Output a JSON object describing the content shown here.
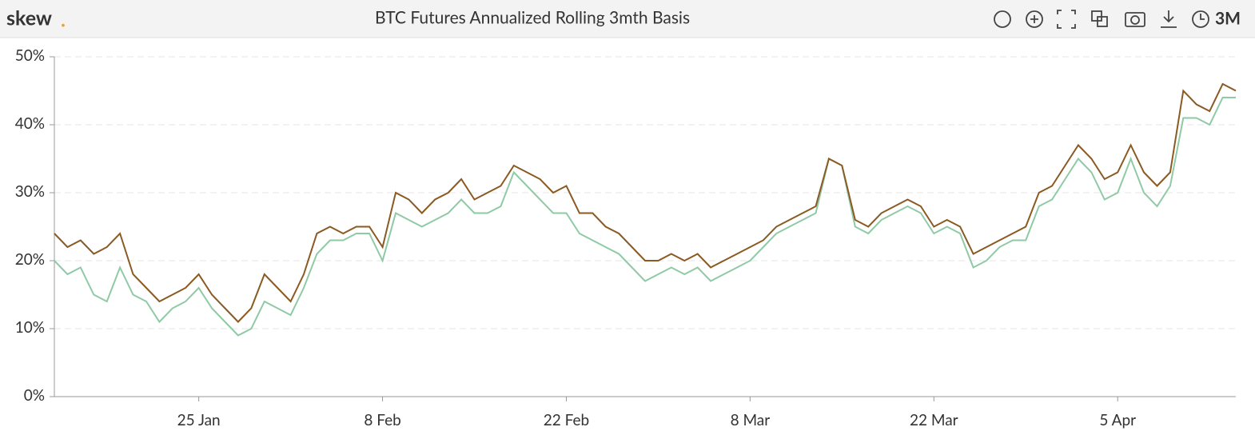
{
  "header": {
    "logo": "skew",
    "logo_mark": ".",
    "range": "3M"
  },
  "chart_data": {
    "type": "line",
    "title": "BTC Futures Annualized Rolling 3mth Basis",
    "categories": [
      null,
      null,
      null,
      null,
      null,
      null,
      null,
      null,
      null,
      null,
      null,
      "25 Jan",
      null,
      null,
      null,
      null,
      null,
      null,
      null,
      null,
      null,
      null,
      null,
      null,
      null,
      "8 Feb",
      null,
      null,
      null,
      null,
      null,
      null,
      null,
      null,
      null,
      null,
      null,
      null,
      null,
      "22 Feb",
      null,
      null,
      null,
      null,
      null,
      null,
      null,
      null,
      null,
      null,
      null,
      null,
      null,
      "8 Mar",
      null,
      null,
      null,
      null,
      null,
      null,
      null,
      null,
      null,
      null,
      null,
      null,
      null,
      "22 Mar",
      null,
      null,
      null,
      null,
      null,
      null,
      null,
      null,
      null,
      null,
      null,
      null,
      null,
      "5 Apr",
      null,
      null,
      null,
      null,
      null,
      null,
      null,
      null,
      null
    ],
    "series": [
      {
        "color": "#8fcaa6",
        "values": [
          20,
          18,
          19,
          15,
          14,
          19,
          15,
          14,
          11,
          13,
          14,
          16,
          13,
          11,
          9,
          10,
          14,
          13,
          12,
          16,
          21,
          23,
          23,
          24,
          24,
          20,
          27,
          26,
          25,
          26,
          27,
          29,
          27,
          27,
          28,
          33,
          31,
          29,
          27,
          27,
          24,
          23,
          22,
          21,
          19,
          17,
          18,
          19,
          18,
          19,
          17,
          18,
          19,
          20,
          22,
          24,
          25,
          26,
          27,
          35,
          34,
          25,
          24,
          26,
          27,
          28,
          27,
          24,
          25,
          24,
          19,
          20,
          22,
          23,
          23,
          28,
          29,
          32,
          35,
          33,
          29,
          30,
          35,
          30,
          28,
          31,
          41,
          41,
          40,
          44,
          44
        ]
      },
      {
        "color": "#8a5a22",
        "values": [
          24,
          22,
          23,
          21,
          22,
          24,
          18,
          16,
          14,
          15,
          16,
          18,
          15,
          13,
          11,
          13,
          18,
          16,
          14,
          18,
          24,
          25,
          24,
          25,
          25,
          22,
          30,
          29,
          27,
          29,
          30,
          32,
          29,
          30,
          31,
          34,
          33,
          32,
          30,
          31,
          27,
          27,
          25,
          24,
          22,
          20,
          20,
          21,
          20,
          21,
          19,
          20,
          21,
          22,
          23,
          25,
          26,
          27,
          28,
          35,
          34,
          26,
          25,
          27,
          28,
          29,
          28,
          25,
          26,
          25,
          21,
          22,
          23,
          24,
          25,
          30,
          31,
          34,
          37,
          35,
          32,
          33,
          37,
          33,
          31,
          33,
          45,
          43,
          42,
          46,
          45
        ]
      }
    ],
    "ylim": [
      0,
      50
    ],
    "yticks": [
      {
        "value": 0,
        "label": "0%"
      },
      {
        "value": 10,
        "label": "10%"
      },
      {
        "value": 20,
        "label": "20%"
      },
      {
        "value": 30,
        "label": "30%"
      },
      {
        "value": 40,
        "label": "40%"
      },
      {
        "value": 50,
        "label": "50%"
      }
    ],
    "grid": true
  }
}
